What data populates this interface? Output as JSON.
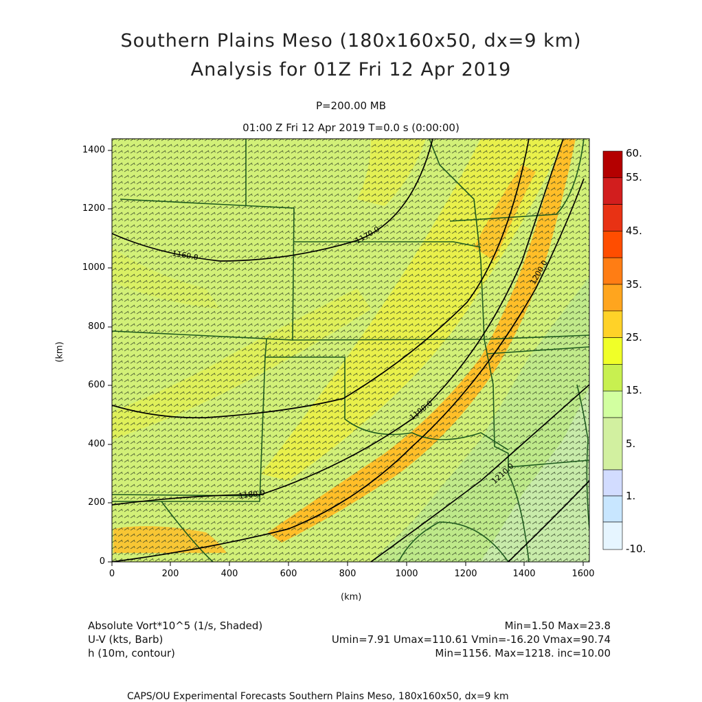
{
  "title": {
    "line1": "Southern Plains Meso (180x160x50, dx=9 km)",
    "line2": "Analysis for 01Z Fri 12 Apr 2019"
  },
  "subtitle": {
    "level": "P=200.00 MB",
    "time": "01:00 Z Fri 12 Apr 2019    T=0.0 s (0:00:00)"
  },
  "axes": {
    "x_label": "(km)",
    "y_label": "(km)",
    "x_ticks": [
      "0",
      "200",
      "400",
      "600",
      "800",
      "1000",
      "1200",
      "1400",
      "1600"
    ],
    "y_ticks": [
      "0",
      "200",
      "400",
      "600",
      "800",
      "1000",
      "1200",
      "1400"
    ],
    "x_range": [
      0,
      1620
    ],
    "y_range": [
      0,
      1440
    ]
  },
  "colorbar": {
    "labels": [
      "60.",
      "55.",
      "45.",
      "35.",
      "25.",
      "15.",
      "5.",
      "1.",
      "-10."
    ],
    "colors": [
      "#b40000",
      "#d21e1e",
      "#e83214",
      "#ff4d00",
      "#ff7d14",
      "#ffa51e",
      "#ffd228",
      "#f0ff28",
      "#c8f050",
      "#d2ffa0",
      "#d2dcff",
      "#c8e6ff",
      "#e6f5ff"
    ]
  },
  "contours": [
    {
      "label": "1160.0",
      "value": 1160
    },
    {
      "label": "1170.0",
      "value": 1170
    },
    {
      "label": "1180.0",
      "value": 1180
    },
    {
      "label": "1190.0",
      "value": 1190
    },
    {
      "label": "1200.0",
      "value": 1200
    },
    {
      "label": "1210.0",
      "value": 1210
    }
  ],
  "legend": {
    "field1": "Absolute Vort*10^5 (1/s, Shaded)",
    "field1_stats": "Min=1.50  Max=23.8",
    "field2": "U-V (kts, Barb)",
    "field2_stats": "Umin=7.91  Umax=110.61  Vmin=-16.20  Vmax=90.74",
    "field3": "h (10m, contour)",
    "field3_stats": "Min=1156.  Max=1218.  inc=10.00"
  },
  "footer": "CAPS/OU Experimental Forecasts  Southern Plains Meso, 180x160x50, dx=9 km",
  "colors": {
    "background_field": "#d2f078",
    "yellow_band": "#f0f03c",
    "orange_band": "#ffbe28",
    "green_field": "#b4e678",
    "pale_green": "#c8ebaa",
    "borders": "#1e5a1e"
  }
}
